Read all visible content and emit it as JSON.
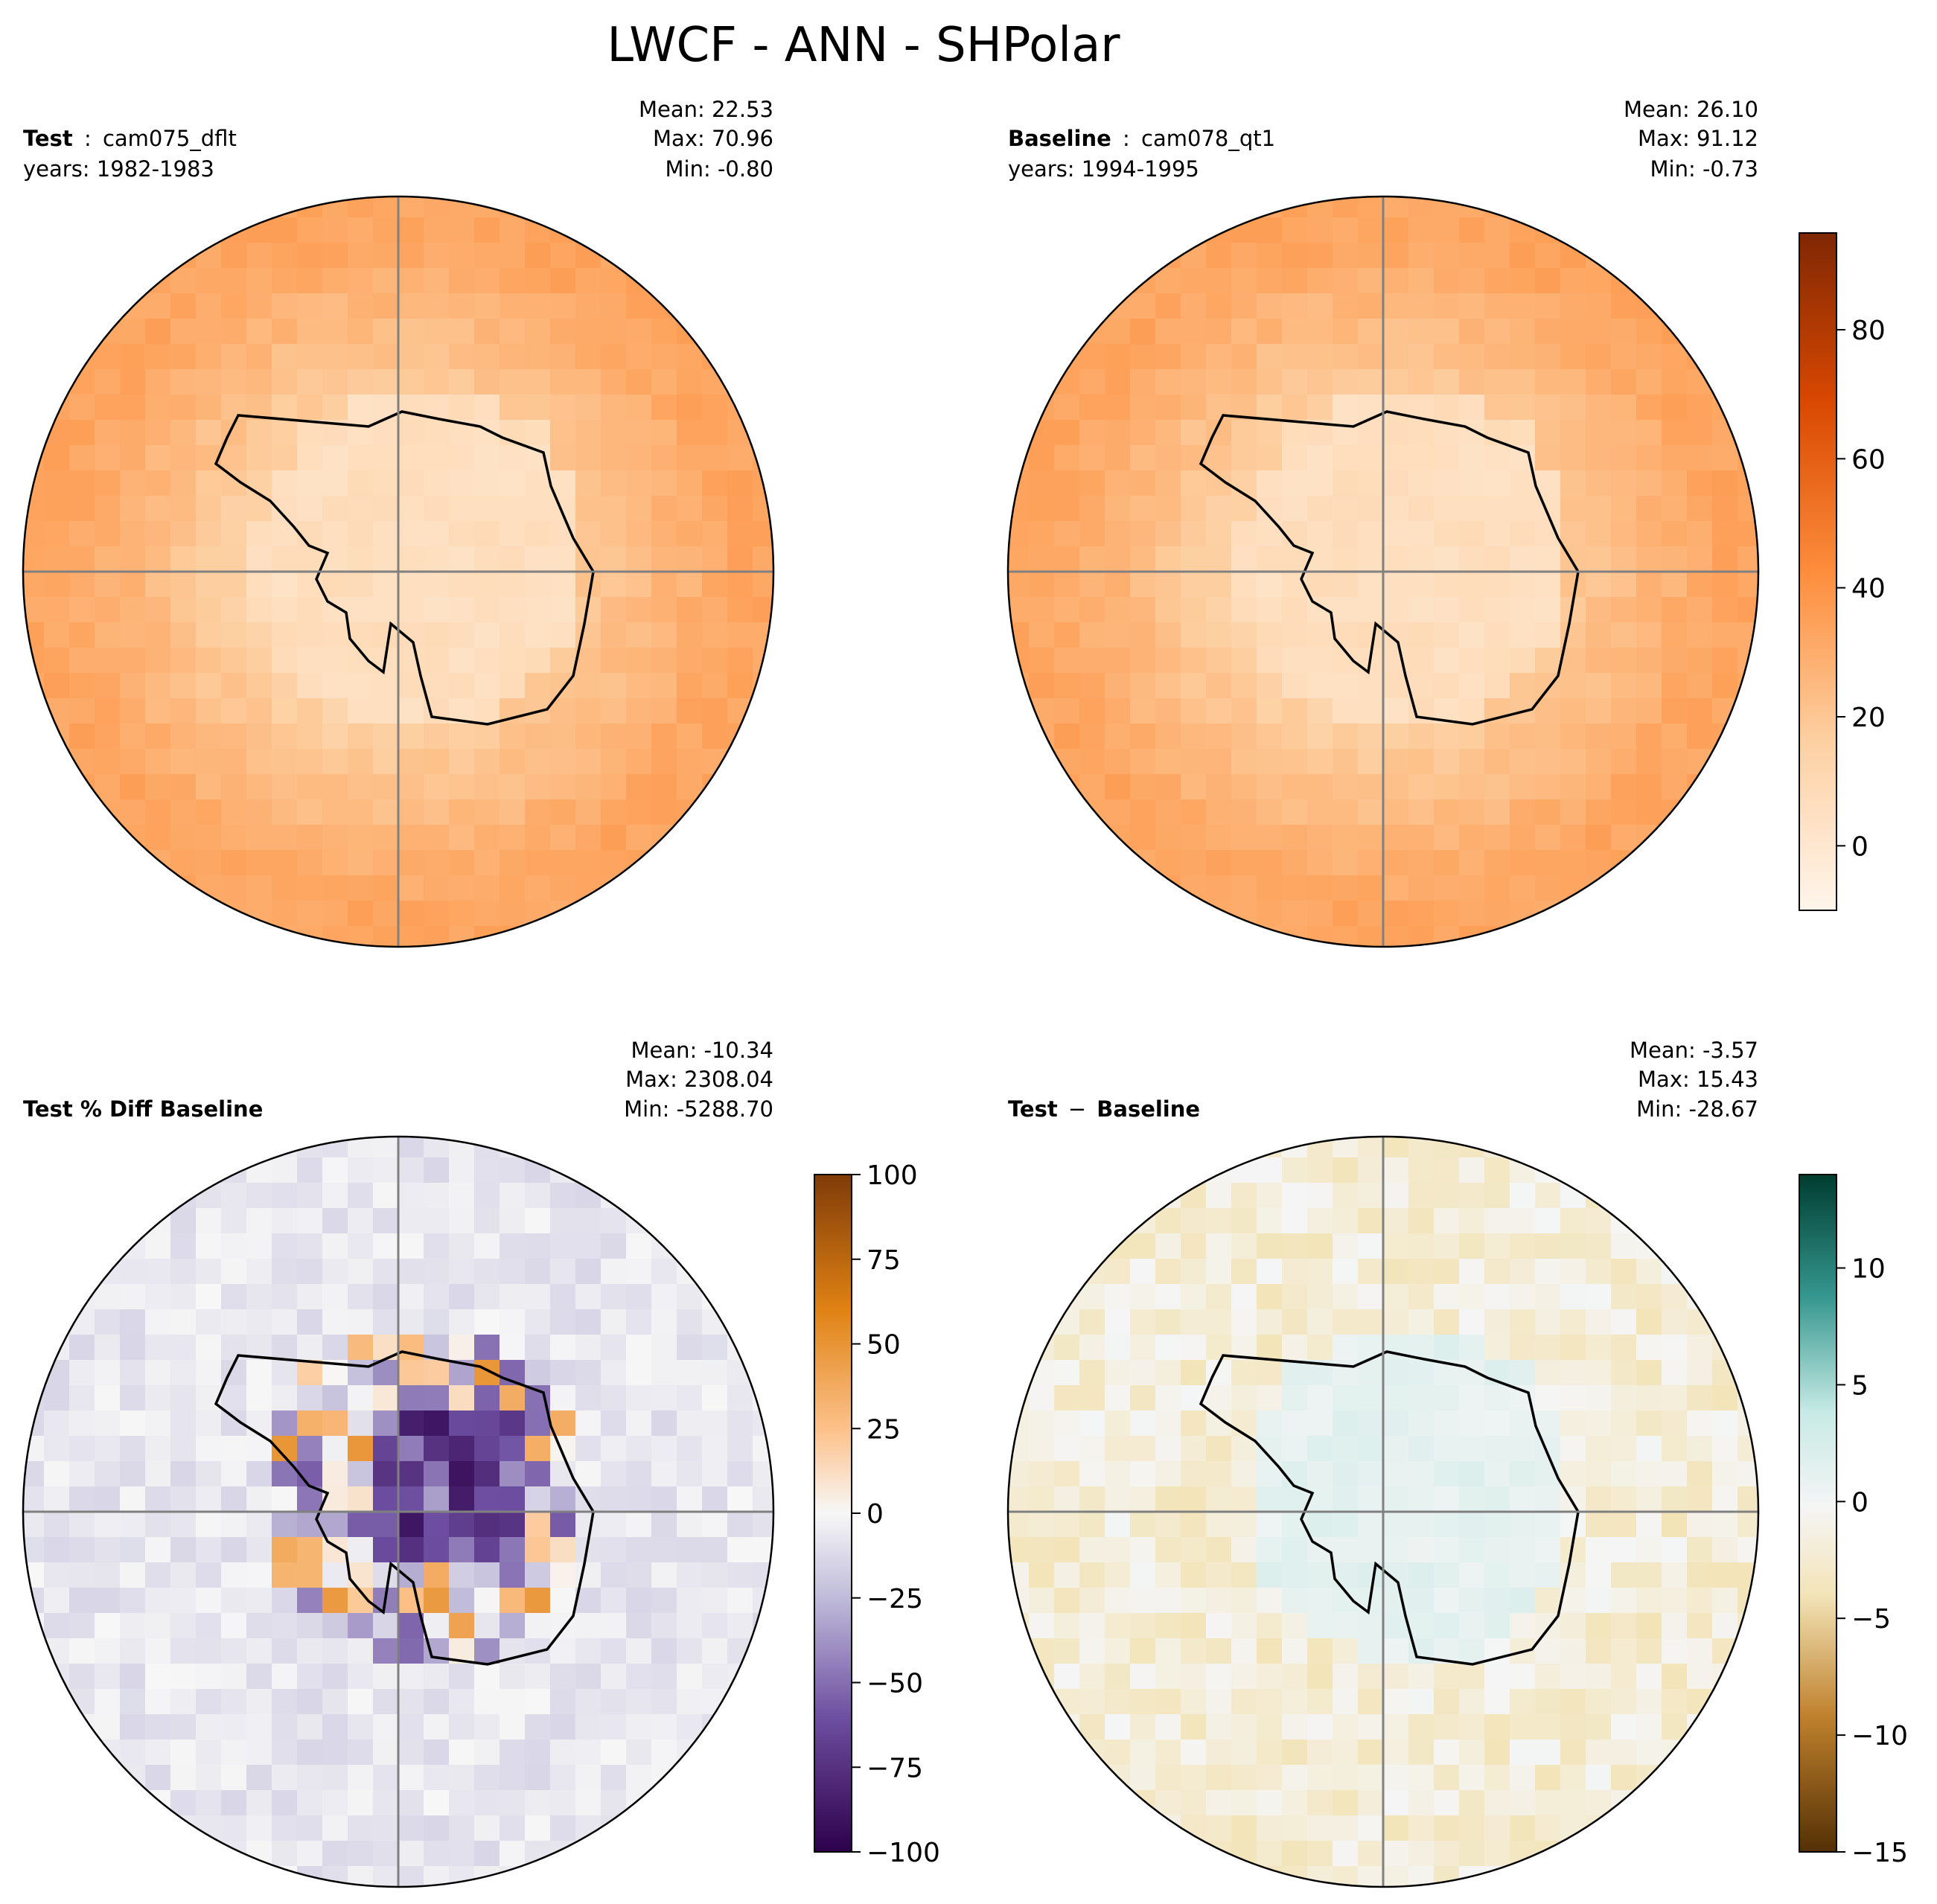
{
  "figure_title": "LWCF - ANN - SHPolar",
  "chart_data": [
    {
      "type": "heatmap",
      "projection": "south-polar-stereographic",
      "title_bold": "Test",
      "title_sep": ":",
      "title_rest": "cam075_dflt",
      "subtitle": "years: 1982-1983",
      "stats": [
        "Mean: 22.53",
        "Max: 70.96",
        "Min: -0.80"
      ],
      "field": "warm",
      "colormap": "Oranges",
      "colorbar": "shared"
    },
    {
      "type": "heatmap",
      "projection": "south-polar-stereographic",
      "title_bold": "Baseline",
      "title_sep": ":",
      "title_rest": "cam078_qt1",
      "subtitle": "years: 1994-1995",
      "stats": [
        "Mean: 26.10",
        "Max: 91.12",
        "Min: -0.73"
      ],
      "field": "warm",
      "colormap": "Oranges",
      "colorbar": {
        "vmin": -10,
        "vmax": 95,
        "ticks": [
          0,
          20,
          40,
          60,
          80
        ],
        "tick_labels": [
          "0",
          "20",
          "40",
          "60",
          "80"
        ]
      }
    },
    {
      "type": "heatmap",
      "projection": "south-polar-stereographic",
      "title_bold": "Test % Diff Baseline",
      "title_sep": "",
      "title_rest": "",
      "subtitle": "",
      "stats": [
        "Mean: -10.34",
        "Max: 2308.04",
        "Min: -5288.70"
      ],
      "field": "pctdiff",
      "colormap": "PuOr_r",
      "colorbar": {
        "vmin": -100,
        "vmax": 100,
        "ticks": [
          100,
          75,
          50,
          25,
          0,
          -25,
          -50,
          -75,
          -100
        ],
        "tick_labels": [
          "100",
          "75",
          "50",
          "25",
          "0",
          "−25",
          "−50",
          "−75",
          "−100"
        ]
      }
    },
    {
      "type": "heatmap",
      "projection": "south-polar-stereographic",
      "title_bold": "Test",
      "title_sep": "−",
      "title_rest": "Baseline",
      "subtitle": "",
      "stats": [
        "Mean: -3.57",
        "Max: 15.43",
        "Min: -28.67"
      ],
      "field": "diff",
      "colormap": "BrBG",
      "colorbar": {
        "vmin": -15,
        "vmax": 14,
        "ticks": [
          10,
          5,
          0,
          -5,
          -10,
          -15
        ],
        "tick_labels": [
          "10",
          "5",
          "0",
          "−5",
          "−10",
          "−15"
        ]
      }
    }
  ]
}
